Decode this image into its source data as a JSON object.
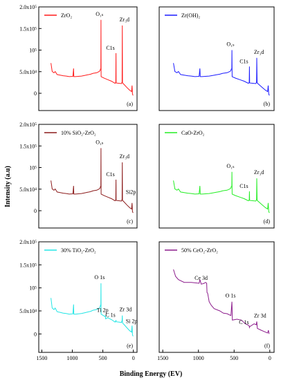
{
  "figure": {
    "xlabel": "Binding Energy (EV)",
    "ylabel": "Intensity (a.u)",
    "x_ticks": [
      "1500",
      "1000",
      "500",
      "0"
    ],
    "y_ticks": [
      "0",
      "5.0x10⁴",
      "10⁵",
      "1.5x10⁵",
      "2.0x10⁵"
    ]
  },
  "chart_data": [
    {
      "type": "line",
      "panel": "(a)",
      "series": [
        {
          "name": "ZrO₂",
          "color": "#ff1a1a"
        }
      ],
      "xlim": [
        1550,
        -60
      ],
      "ylim": [
        -40000,
        200000
      ],
      "peaks": [
        {
          "label": "O₁ₛ",
          "x": 531,
          "y": 170000
        },
        {
          "label": "C1s",
          "x": 285,
          "y": 93000
        },
        {
          "label": "Zr₃d",
          "x": 182,
          "y": 157000
        }
      ]
    },
    {
      "type": "line",
      "panel": "(b)",
      "series": [
        {
          "name": "Zr(OH)₂",
          "color": "#1a1aff"
        }
      ],
      "xlim": [
        1550,
        -60
      ],
      "ylim": [
        -40000,
        200000
      ],
      "peaks": [
        {
          "label": "O₁ₛ",
          "x": 531,
          "y": 100000
        },
        {
          "label": "C1s",
          "x": 285,
          "y": 62000
        },
        {
          "label": "Zr₃d",
          "x": 182,
          "y": 82000
        }
      ]
    },
    {
      "type": "line",
      "panel": "(c)",
      "series": [
        {
          "name": "10% SiO₂-ZrO₂",
          "color": "#8b1a1a"
        }
      ],
      "xlim": [
        1550,
        -60
      ],
      "ylim": [
        -40000,
        200000
      ],
      "peaks": [
        {
          "label": "O₁ₛ",
          "x": 531,
          "y": 145000
        },
        {
          "label": "C1s",
          "x": 285,
          "y": 72000
        },
        {
          "label": "Zr₃d",
          "x": 182,
          "y": 112000
        },
        {
          "label": "Si2p",
          "x": 102,
          "y": 30000
        }
      ]
    },
    {
      "type": "line",
      "panel": "(d)",
      "series": [
        {
          "name": "CaO-ZrO₂",
          "color": "#22ee22"
        }
      ],
      "xlim": [
        1550,
        -60
      ],
      "ylim": [
        -40000,
        200000
      ],
      "peaks": [
        {
          "label": "O₁ₛ",
          "x": 531,
          "y": 90000
        },
        {
          "label": "C1s",
          "x": 285,
          "y": 45000
        },
        {
          "label": "Zr₃d",
          "x": 182,
          "y": 75000
        }
      ]
    },
    {
      "type": "line",
      "panel": "(e)",
      "series": [
        {
          "name": "30% TiO₂-ZrO₂",
          "color": "#22e5e5"
        }
      ],
      "xlim": [
        1550,
        -60
      ],
      "ylim": [
        -40000,
        200000
      ],
      "peaks": [
        {
          "label": "O 1s",
          "x": 531,
          "y": 110000
        },
        {
          "label": "Ti 2p",
          "x": 459,
          "y": 40000
        },
        {
          "label": "C 1s",
          "x": 285,
          "y": 30000
        },
        {
          "label": "Zr 3d",
          "x": 182,
          "y": 40000
        },
        {
          "label": "Si 2p",
          "x": 102,
          "y": 15000
        }
      ]
    },
    {
      "type": "line",
      "panel": "(f)",
      "series": [
        {
          "name": "50% CeO₂-ZrO₂",
          "color": "#8b1a8b"
        }
      ],
      "xlim": [
        1550,
        -60
      ],
      "ylim": [
        -40000,
        200000
      ],
      "peaks": [
        {
          "label": "Ce 3d",
          "x": 885,
          "y": 110000
        },
        {
          "label": "O 1s",
          "x": 531,
          "y": 70000
        },
        {
          "label": "C 1s",
          "x": 285,
          "y": 14000
        },
        {
          "label": "Zr 3d",
          "x": 182,
          "y": 27000
        }
      ]
    }
  ]
}
